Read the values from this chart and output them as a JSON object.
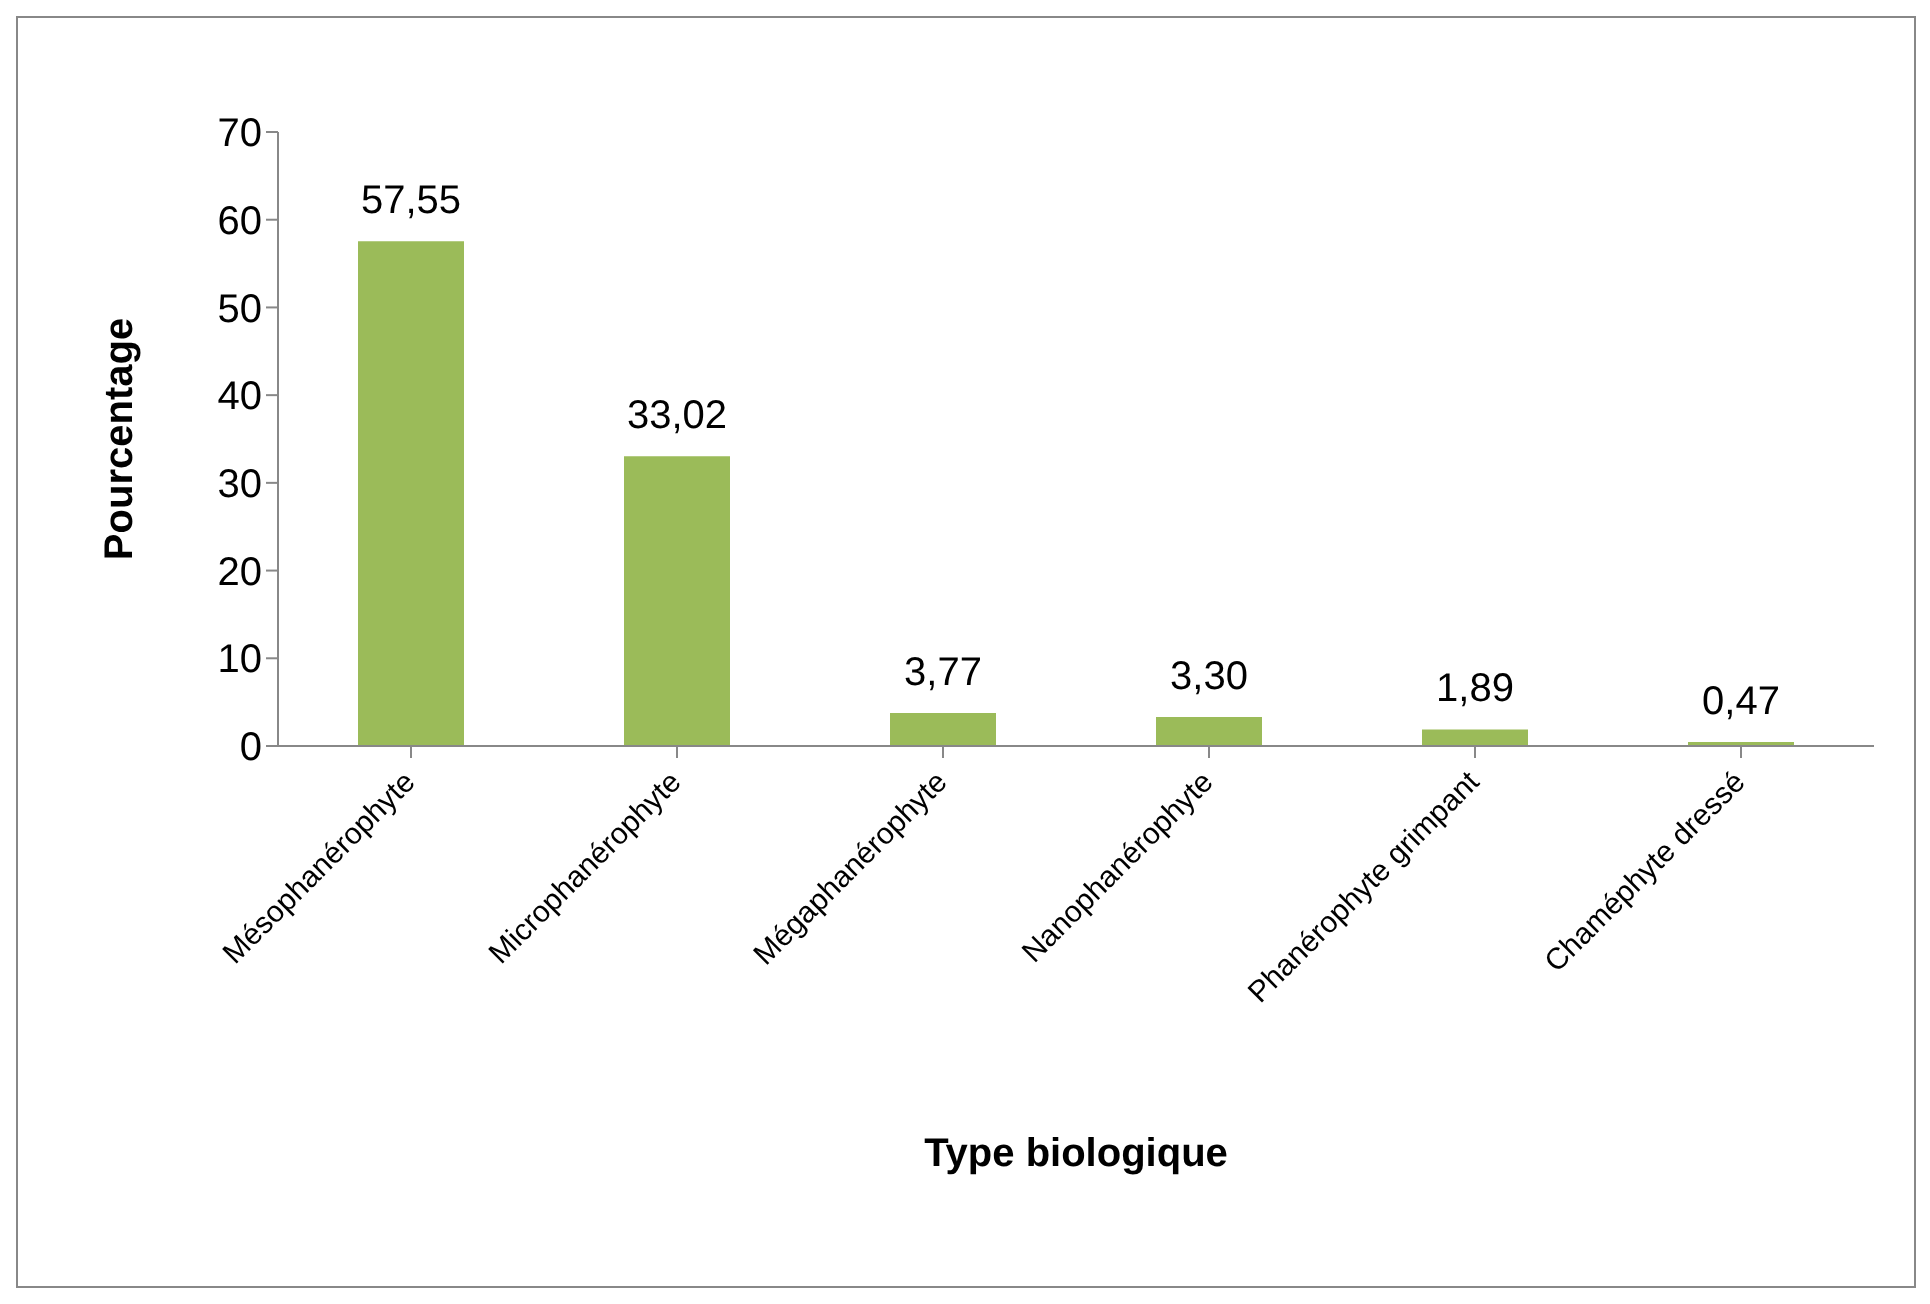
{
  "chart_data": {
    "type": "bar",
    "xlabel": "Type biologique",
    "ylabel": "Pourcentage",
    "categories": [
      "Mésophanérophyte",
      "Microphanérophyte",
      "Mégaphanérophyte",
      "Nanophanérophyte",
      "Phanérophyte grimpant",
      "Chaméphyte dressé"
    ],
    "values": [
      57.55,
      33.02,
      3.77,
      3.3,
      1.89,
      0.47
    ],
    "value_labels": [
      "57,55",
      "33,02",
      "3,77",
      "3,30",
      "1,89",
      "0,47"
    ],
    "color": "#9bbb59",
    "ylim": [
      0,
      70
    ],
    "yticks": [
      0,
      10,
      20,
      30,
      40,
      50,
      60,
      70
    ],
    "grid": false
  }
}
